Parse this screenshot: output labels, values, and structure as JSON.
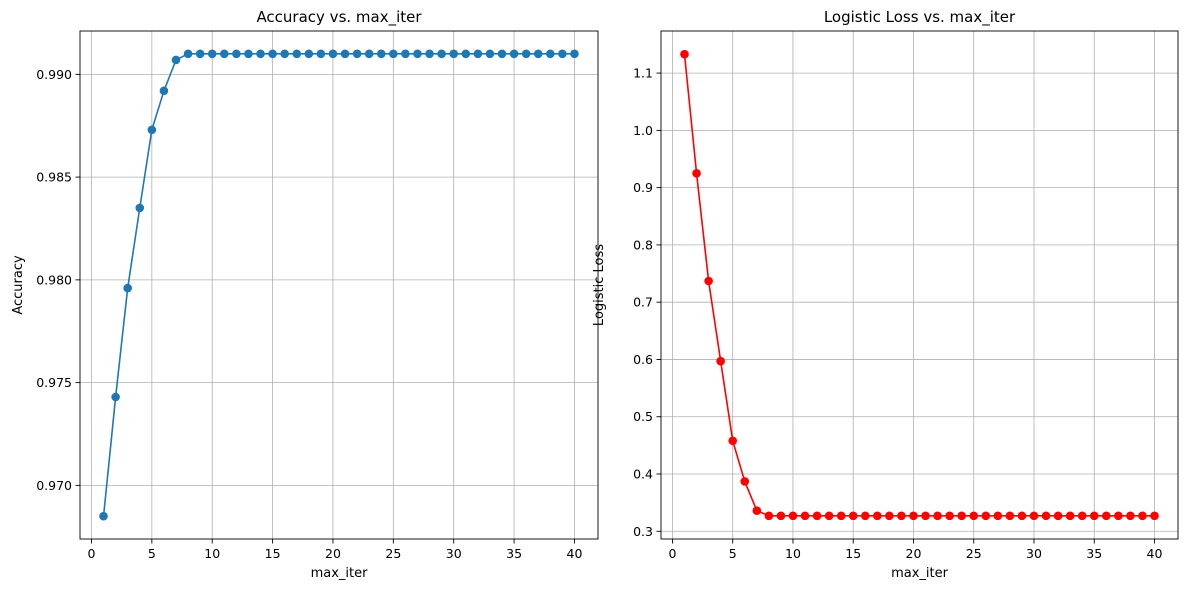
{
  "chart_data": [
    {
      "type": "line",
      "title": "Accuracy vs. max_iter",
      "xlabel": "max_iter",
      "ylabel": "Accuracy",
      "xlim": [
        -0.95,
        41.95
      ],
      "ylim": [
        0.96739,
        0.99211
      ],
      "xticks": [
        0,
        5,
        10,
        15,
        20,
        25,
        30,
        35,
        40
      ],
      "xtick_labels": [
        "0",
        "5",
        "10",
        "15",
        "20",
        "25",
        "30",
        "35",
        "40"
      ],
      "yticks": [
        0.97,
        0.975,
        0.98,
        0.985,
        0.99
      ],
      "ytick_labels": [
        "0.970",
        "0.975",
        "0.980",
        "0.985",
        "0.990"
      ],
      "grid": true,
      "marker": "circle",
      "series": [
        {
          "color": "#1f77b4",
          "x": [
            1,
            2,
            3,
            4,
            5,
            6,
            7,
            8,
            9,
            10,
            11,
            12,
            13,
            14,
            15,
            16,
            17,
            18,
            19,
            20,
            21,
            22,
            23,
            24,
            25,
            26,
            27,
            28,
            29,
            30,
            31,
            32,
            33,
            34,
            35,
            36,
            37,
            38,
            39,
            40
          ],
          "y": [
            0.9685,
            0.9743,
            0.9796,
            0.9835,
            0.9873,
            0.9892,
            0.9907,
            0.991,
            0.991,
            0.991,
            0.991,
            0.991,
            0.991,
            0.991,
            0.991,
            0.991,
            0.991,
            0.991,
            0.991,
            0.991,
            0.991,
            0.991,
            0.991,
            0.991,
            0.991,
            0.991,
            0.991,
            0.991,
            0.991,
            0.991,
            0.991,
            0.991,
            0.991,
            0.991,
            0.991,
            0.991,
            0.991,
            0.991,
            0.991,
            0.991
          ]
        }
      ]
    },
    {
      "type": "line",
      "title": "Logistic Loss vs. max_iter",
      "xlabel": "max_iter",
      "ylabel": "Logistic Loss",
      "xlim": [
        -0.95,
        41.95
      ],
      "ylim": [
        0.2865,
        1.1735
      ],
      "xticks": [
        0,
        5,
        10,
        15,
        20,
        25,
        30,
        35,
        40
      ],
      "xtick_labels": [
        "0",
        "5",
        "10",
        "15",
        "20",
        "25",
        "30",
        "35",
        "40"
      ],
      "yticks": [
        0.3,
        0.4,
        0.5,
        0.6,
        0.7,
        0.8,
        0.9,
        1.0,
        1.1
      ],
      "ytick_labels": [
        "0.3",
        "0.4",
        "0.5",
        "0.6",
        "0.7",
        "0.8",
        "0.9",
        "1.0",
        "1.1"
      ],
      "grid": true,
      "marker": "circle",
      "series": [
        {
          "color": "#ff0000",
          "x": [
            1,
            2,
            3,
            4,
            5,
            6,
            7,
            8,
            9,
            10,
            11,
            12,
            13,
            14,
            15,
            16,
            17,
            18,
            19,
            20,
            21,
            22,
            23,
            24,
            25,
            26,
            27,
            28,
            29,
            30,
            31,
            32,
            33,
            34,
            35,
            36,
            37,
            38,
            39,
            40
          ],
          "y": [
            1.133,
            0.925,
            0.737,
            0.597,
            0.458,
            0.387,
            0.336,
            0.327,
            0.327,
            0.327,
            0.327,
            0.327,
            0.327,
            0.327,
            0.327,
            0.327,
            0.327,
            0.327,
            0.327,
            0.327,
            0.327,
            0.327,
            0.327,
            0.327,
            0.327,
            0.327,
            0.327,
            0.327,
            0.327,
            0.327,
            0.327,
            0.327,
            0.327,
            0.327,
            0.327,
            0.327,
            0.327,
            0.327,
            0.327,
            0.327
          ]
        }
      ]
    }
  ]
}
